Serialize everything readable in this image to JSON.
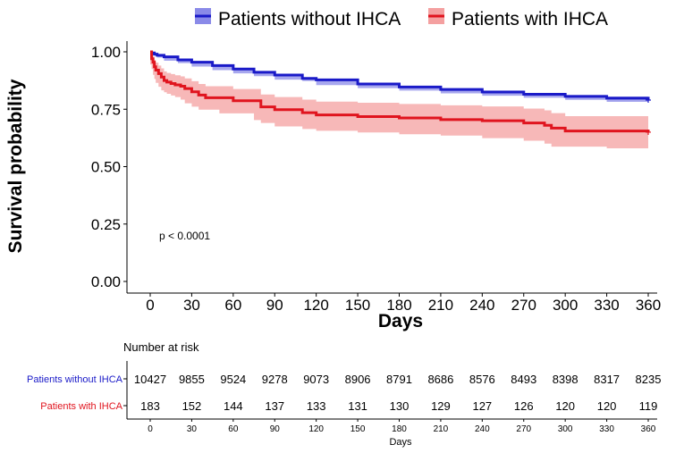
{
  "chart_data": {
    "type": "line",
    "subtype": "kaplan-meier",
    "xlabel": "Days",
    "ylabel": "Survival probability",
    "xlim": [
      0,
      360
    ],
    "ylim": [
      0,
      1
    ],
    "xticks": [
      0,
      30,
      60,
      90,
      120,
      150,
      180,
      210,
      240,
      270,
      300,
      330,
      360
    ],
    "yticks": [
      "0.00",
      "0.25",
      "0.50",
      "0.75",
      "1.00"
    ],
    "legend_position": "top",
    "annotation": "p < 0.0001",
    "series": [
      {
        "name": "Patients without IHCA",
        "color": "#1a1ac8",
        "band_color": "#8a8ae8",
        "x": [
          0,
          1,
          3,
          5,
          10,
          20,
          30,
          45,
          60,
          75,
          90,
          110,
          120,
          150,
          180,
          210,
          240,
          270,
          300,
          330,
          360
        ],
        "y": [
          1.0,
          0.995,
          0.99,
          0.985,
          0.978,
          0.965,
          0.955,
          0.94,
          0.925,
          0.911,
          0.899,
          0.884,
          0.878,
          0.86,
          0.847,
          0.836,
          0.825,
          0.815,
          0.806,
          0.798,
          0.79
        ],
        "lower": [
          1.0,
          0.994,
          0.988,
          0.983,
          0.975,
          0.961,
          0.951,
          0.936,
          0.92,
          0.906,
          0.894,
          0.879,
          0.873,
          0.855,
          0.842,
          0.831,
          0.819,
          0.809,
          0.8,
          0.791,
          0.782
        ],
        "upper": [
          1.0,
          0.996,
          0.992,
          0.987,
          0.981,
          0.969,
          0.959,
          0.944,
          0.93,
          0.916,
          0.904,
          0.889,
          0.883,
          0.865,
          0.852,
          0.841,
          0.831,
          0.821,
          0.812,
          0.805,
          0.798
        ]
      },
      {
        "name": "Patients with IHCA",
        "color": "#e0141e",
        "band_color": "#f4a0a0",
        "x": [
          0,
          1,
          2,
          3,
          4,
          6,
          8,
          10,
          12,
          15,
          18,
          22,
          25,
          30,
          35,
          40,
          50,
          60,
          75,
          80,
          90,
          110,
          120,
          150,
          180,
          210,
          240,
          270,
          285,
          290,
          300,
          330,
          360
        ],
        "y": [
          1.0,
          0.97,
          0.955,
          0.935,
          0.92,
          0.905,
          0.89,
          0.875,
          0.868,
          0.862,
          0.856,
          0.85,
          0.84,
          0.826,
          0.812,
          0.8,
          0.8,
          0.787,
          0.787,
          0.76,
          0.748,
          0.735,
          0.725,
          0.718,
          0.712,
          0.705,
          0.7,
          0.69,
          0.68,
          0.668,
          0.655,
          0.655,
          0.65
        ],
        "lower": [
          1.0,
          0.945,
          0.925,
          0.9,
          0.882,
          0.865,
          0.848,
          0.832,
          0.824,
          0.817,
          0.81,
          0.803,
          0.792,
          0.776,
          0.761,
          0.748,
          0.748,
          0.732,
          0.732,
          0.703,
          0.69,
          0.675,
          0.664,
          0.656,
          0.649,
          0.641,
          0.635,
          0.624,
          0.613,
          0.6,
          0.587,
          0.587,
          0.58
        ],
        "upper": [
          1.0,
          0.99,
          0.98,
          0.965,
          0.953,
          0.94,
          0.928,
          0.915,
          0.908,
          0.903,
          0.898,
          0.893,
          0.884,
          0.872,
          0.86,
          0.85,
          0.85,
          0.838,
          0.838,
          0.814,
          0.803,
          0.792,
          0.783,
          0.778,
          0.773,
          0.767,
          0.762,
          0.753,
          0.745,
          0.733,
          0.72,
          0.72,
          0.72
        ]
      }
    ],
    "risk_table": {
      "title": "Number at risk",
      "xlabel": "Days",
      "times": [
        0,
        30,
        60,
        90,
        120,
        150,
        180,
        210,
        240,
        270,
        300,
        330,
        360
      ],
      "rows": [
        {
          "name": "Patients without IHCA",
          "color": "#1a1ac8",
          "values": [
            10427,
            9855,
            9524,
            9278,
            9073,
            8906,
            8791,
            8686,
            8576,
            8493,
            8398,
            8317,
            8235
          ]
        },
        {
          "name": "Patients with IHCA",
          "color": "#e0141e",
          "values": [
            183,
            152,
            144,
            137,
            133,
            131,
            130,
            129,
            127,
            126,
            120,
            120,
            119
          ]
        }
      ]
    }
  }
}
